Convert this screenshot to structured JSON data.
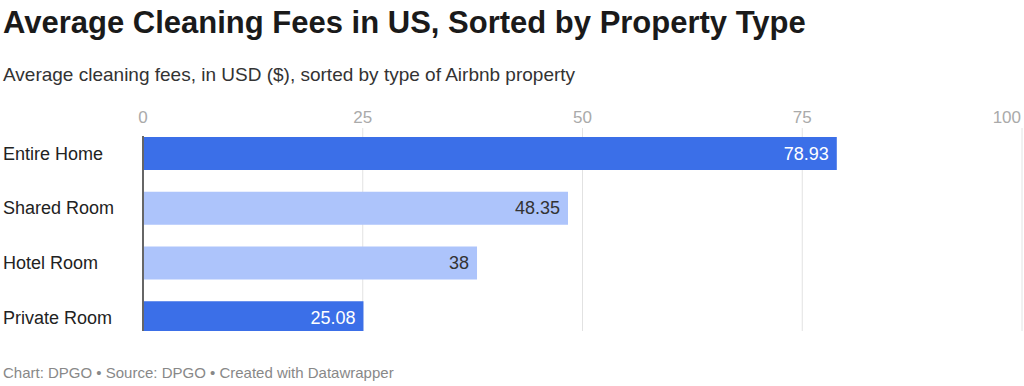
{
  "chart_data": {
    "type": "bar",
    "orientation": "horizontal",
    "title": "Average Cleaning Fees in US, Sorted by Property Type",
    "subtitle": "Average cleaning fees, in USD ($), sorted by type of Airbnb property",
    "caption": "Chart: DPGO • Source: DPGO • Created with Datawrapper",
    "categories": [
      "Entire Home",
      "Shared Room",
      "Hotel Room",
      "Private Room"
    ],
    "values": [
      78.93,
      48.35,
      38,
      25.08
    ],
    "colors": [
      "#3b6fe8",
      "#adc4fb",
      "#adc4fb",
      "#3b6fe8"
    ],
    "xlim": [
      0,
      100
    ],
    "xticks": [
      0,
      25,
      50,
      75,
      100
    ],
    "grid": true,
    "data_labels": true
  }
}
